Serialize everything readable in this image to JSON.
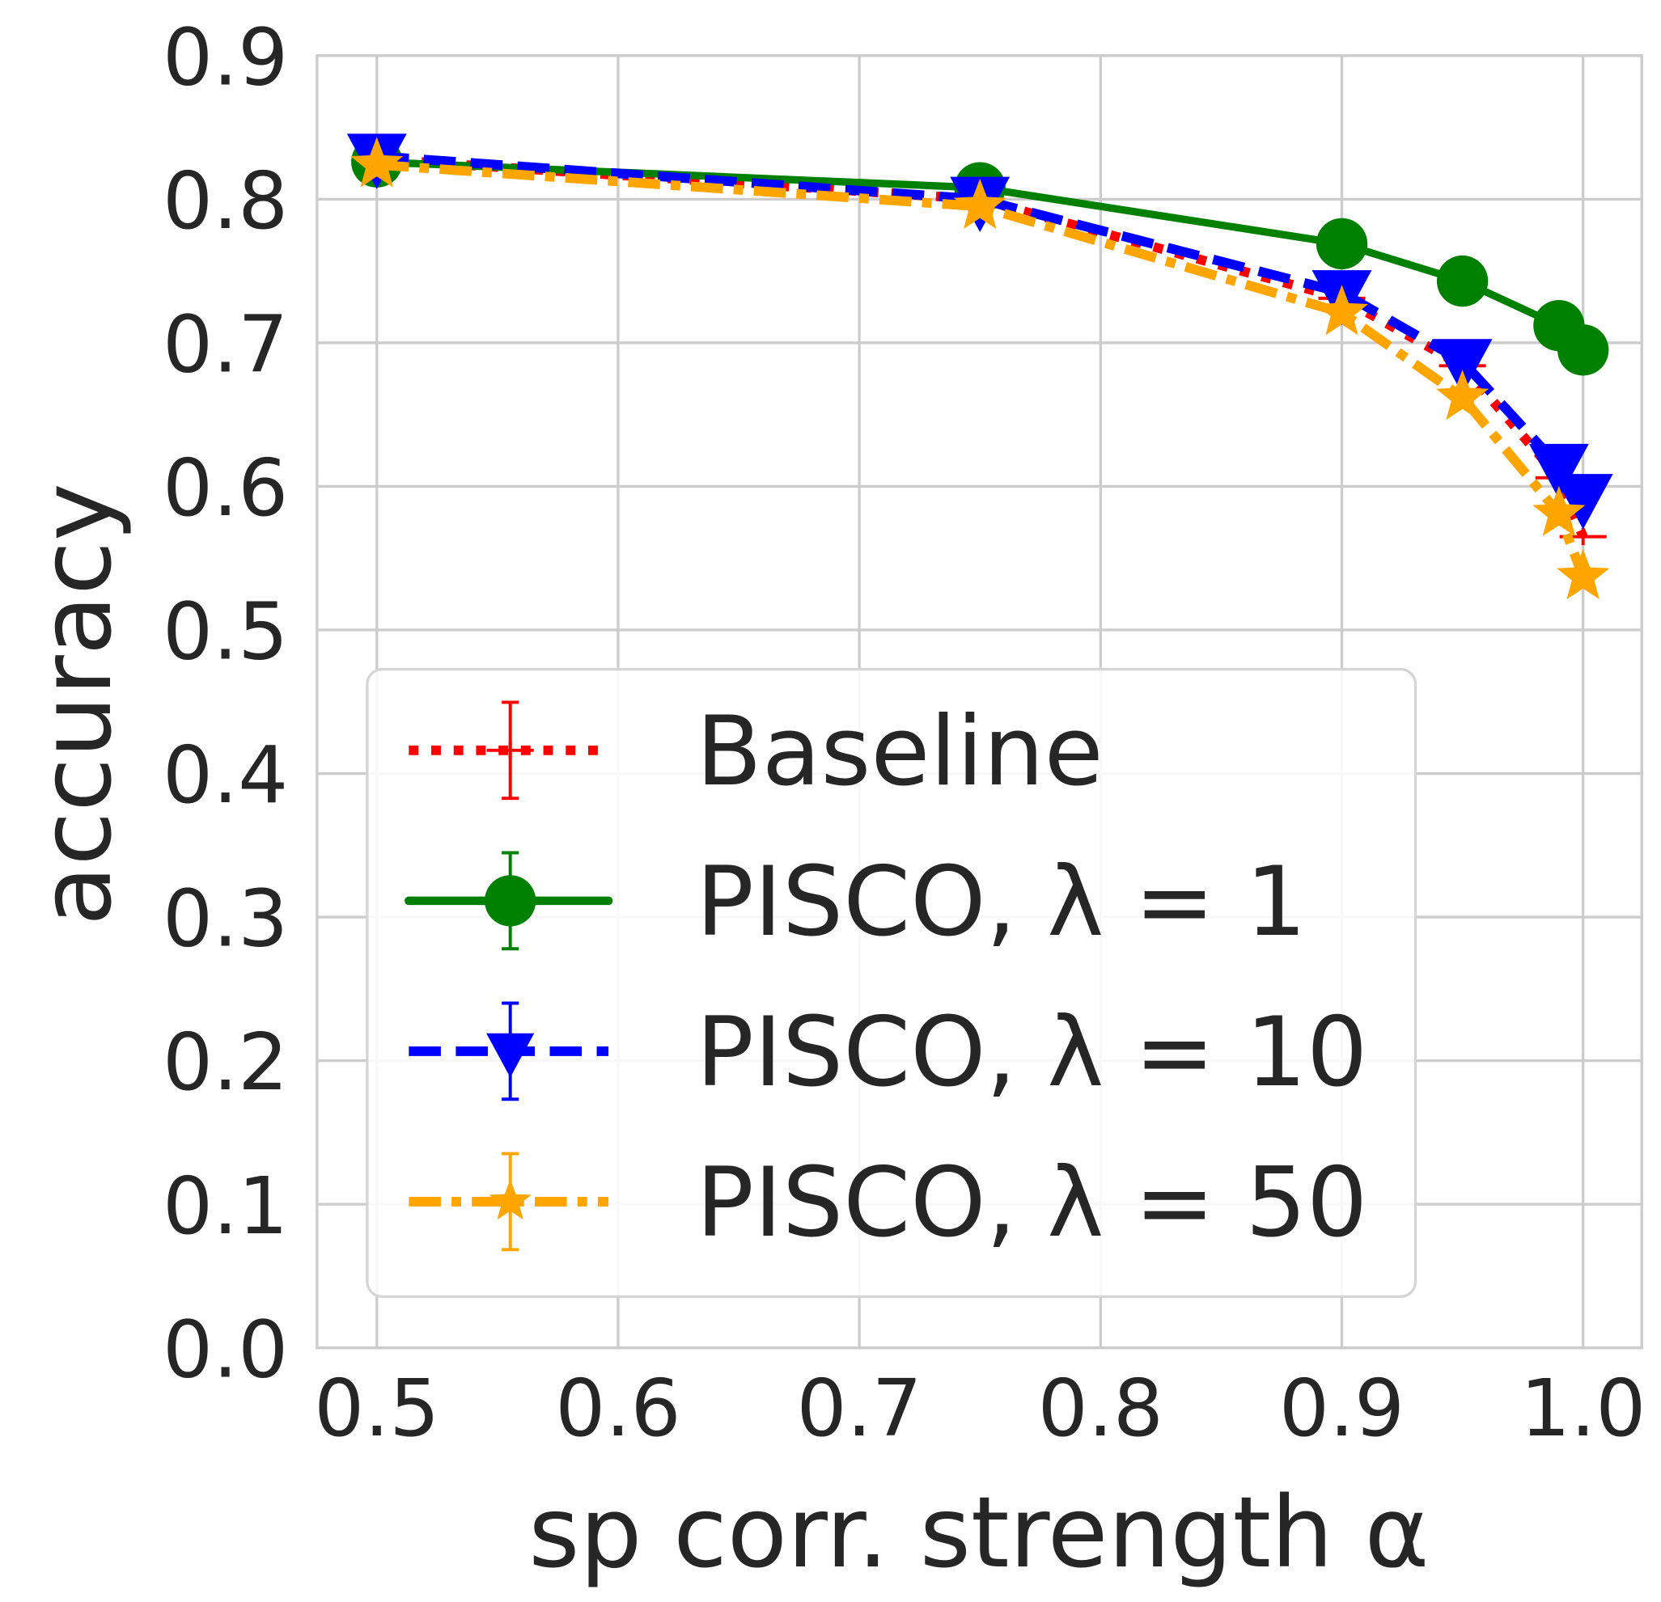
{
  "chart_data": {
    "type": "line",
    "title": "",
    "xlabel": "sp corr. strength α",
    "ylabel": "accuracy",
    "xlim": [
      0.475,
      1.0125
    ],
    "ylim": [
      0.0,
      0.9
    ],
    "xticks": [
      "0.5",
      "0.6",
      "0.7",
      "0.8",
      "0.9",
      "1.0"
    ],
    "yticks": [
      "0.0",
      "0.1",
      "0.2",
      "0.3",
      "0.4",
      "0.5",
      "0.6",
      "0.7",
      "0.8",
      "0.9"
    ],
    "grid": true,
    "legend_position": "lower-left",
    "x": [
      0.5,
      0.75,
      0.9,
      0.95,
      0.99,
      1.0
    ],
    "series": [
      {
        "name": "Baseline",
        "color": "#ff0000",
        "style": "dotted",
        "marker": "plus",
        "values": [
          0.828,
          0.8,
          0.731,
          0.684,
          0.606,
          0.565
        ]
      },
      {
        "name": "PISCO, λ = 1",
        "color": "#008000",
        "style": "solid",
        "marker": "circle",
        "values": [
          0.826,
          0.808,
          0.769,
          0.743,
          0.712,
          0.695
        ]
      },
      {
        "name": "PISCO, λ = 10",
        "color": "#0000ff",
        "style": "dashed",
        "marker": "triangle-down",
        "values": [
          0.83,
          0.8,
          0.735,
          0.687,
          0.614,
          0.593
        ]
      },
      {
        "name": "PISCO, λ = 50",
        "color": "#ffa500",
        "style": "dashdot",
        "marker": "star",
        "values": [
          0.824,
          0.795,
          0.721,
          0.662,
          0.581,
          0.537
        ]
      }
    ]
  }
}
